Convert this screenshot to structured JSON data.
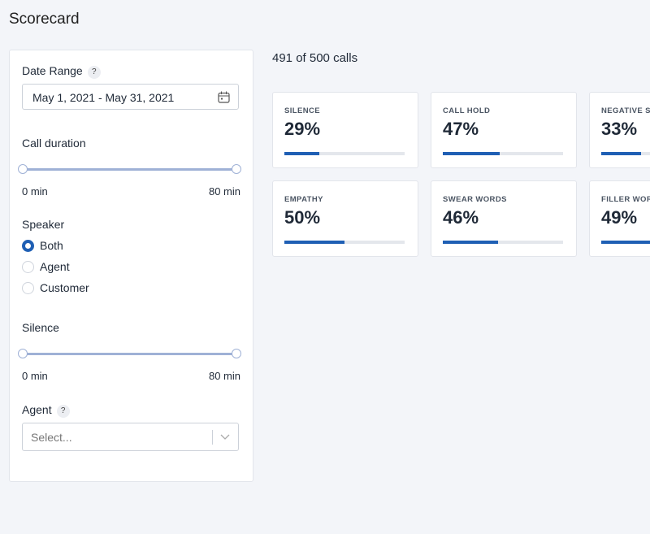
{
  "header": {
    "title": "Scorecard"
  },
  "filters": {
    "date_range": {
      "label": "Date Range",
      "help": "?",
      "value": "May 1, 2021 - May 31, 2021"
    },
    "call_duration": {
      "label": "Call duration",
      "min_label": "0 min",
      "max_label": "80 min"
    },
    "speaker": {
      "label": "Speaker",
      "options": [
        "Both",
        "Agent",
        "Customer"
      ],
      "selected": "Both"
    },
    "silence": {
      "label": "Silence",
      "min_label": "0 min",
      "max_label": "80 min"
    },
    "agent": {
      "label": "Agent",
      "help": "?",
      "placeholder": "Select..."
    }
  },
  "summary": "491 of 500 calls",
  "cards": [
    {
      "label": "SILENCE",
      "value": 29,
      "value_label": "29%"
    },
    {
      "label": "CALL HOLD",
      "value": 47,
      "value_label": "47%"
    },
    {
      "label": "NEGATIVE SENTIMENT",
      "value": 33,
      "value_label": "33%"
    },
    {
      "label": "EMPATHY",
      "value": 50,
      "value_label": "50%"
    },
    {
      "label": "SWEAR WORDS",
      "value": 46,
      "value_label": "46%"
    },
    {
      "label": "FILLER WORDS",
      "value": 49,
      "value_label": "49%"
    }
  ]
}
